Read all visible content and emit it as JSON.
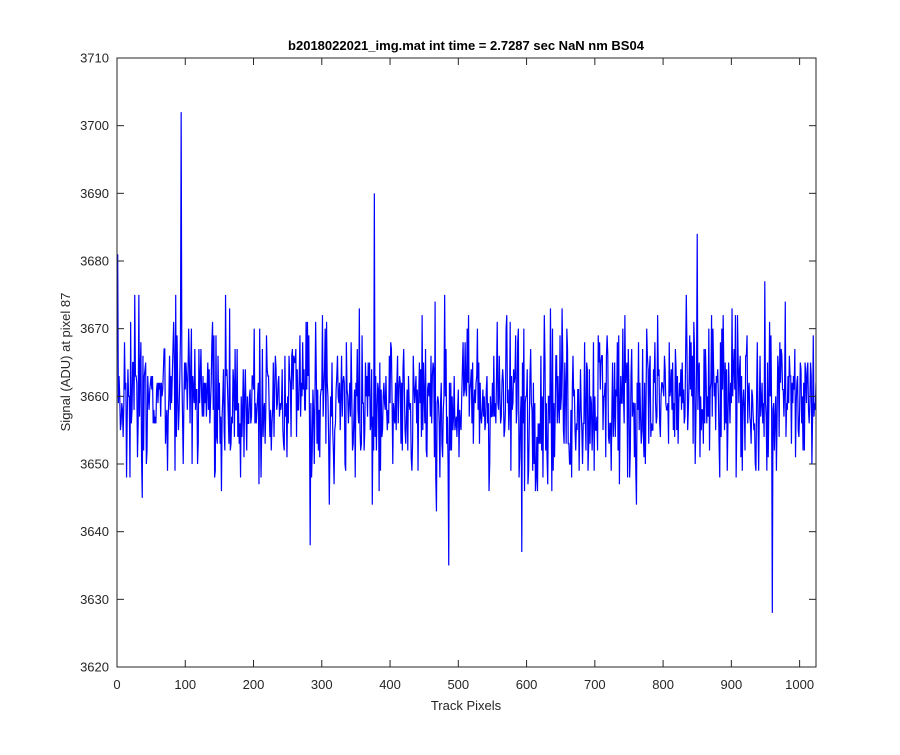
{
  "chart_data": {
    "type": "line",
    "title": "b2018022021_img.mat int time = 2.7287 sec  NaN nm BS04",
    "xlabel": "Track Pixels",
    "ylabel": "Signal (ADU) at pixel 87",
    "xlim": [
      0,
      1024
    ],
    "ylim": [
      3620,
      3710
    ],
    "xticks": [
      "0",
      "100",
      "200",
      "300",
      "400",
      "500",
      "600",
      "700",
      "800",
      "900",
      "1000"
    ],
    "yticks": [
      "3620",
      "3630",
      "3640",
      "3650",
      "3660",
      "3670",
      "3680",
      "3690",
      "3700",
      "3710"
    ],
    "grid": false,
    "series": [
      {
        "color": "#0000ff",
        "x": [
          1,
          25,
          50,
          75,
          94,
          100,
          125,
          150,
          175,
          200,
          225,
          250,
          275,
          283,
          300,
          325,
          350,
          377,
          400,
          425,
          450,
          486,
          500,
          525,
          550,
          575,
          593,
          600,
          625,
          650,
          675,
          700,
          725,
          750,
          775,
          800,
          825,
          850,
          875,
          900,
          925,
          950,
          960,
          975,
          1000,
          1024
        ],
        "values": [
          3681,
          3658,
          3663,
          3657,
          3702,
          3661,
          3657,
          3662,
          3658,
          3661,
          3658,
          3660,
          3658,
          3638,
          3661,
          3659,
          3662,
          3690,
          3659,
          3661,
          3660,
          3635,
          3661,
          3659,
          3662,
          3658,
          3637,
          3660,
          3661,
          3658,
          3661,
          3660,
          3658,
          3661,
          3659,
          3661,
          3660,
          3684,
          3660,
          3659,
          3661,
          3659,
          3628,
          3661,
          3658,
          3662
        ]
      }
    ],
    "noise": {
      "points": 1024,
      "center": 3659.5,
      "spread": 6.3
    }
  }
}
